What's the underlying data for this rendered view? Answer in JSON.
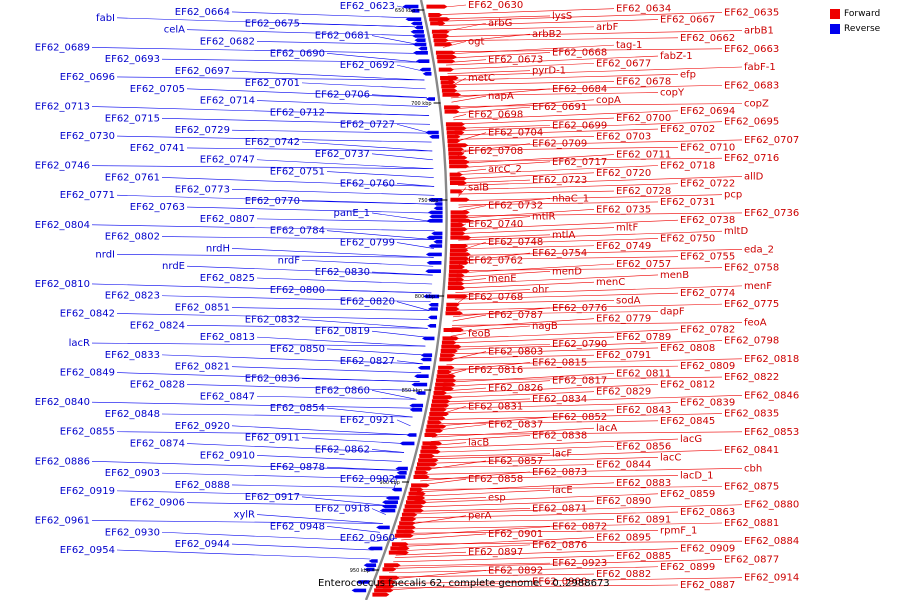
{
  "caption": "Enterococcus faecalis 62, complete genome. - 0..2988673",
  "legend": [
    {
      "label": "Forward",
      "color": "#ee0000"
    },
    {
      "label": "Reverse",
      "color": "#0000ee"
    }
  ],
  "colors": {
    "forward": "#ee0000",
    "reverse": "#0000ee",
    "backbone": "#888888"
  },
  "ticks": [
    "650 kbp",
    "700 kbp",
    "750 kbp",
    "800 kbp",
    "850 kbp",
    "900 kbp",
    "950 kbp"
  ],
  "reverse_labels": [
    "EF62_0623",
    "EF62_0664",
    "fabI",
    "EF62_0675",
    "celA",
    "EF62_0681",
    "EF62_0682",
    "EF62_0689",
    "EF62_0690",
    "EF62_0693",
    "EF62_0692",
    "EF62_0697",
    "EF62_0696",
    "EF62_0701",
    "EF62_0705",
    "EF62_0706",
    "EF62_0714",
    "EF62_0713",
    "EF62_0712",
    "EF62_0715",
    "EF62_0727",
    "EF62_0729",
    "EF62_0730",
    "EF62_0742",
    "EF62_0741",
    "EF62_0737",
    "EF62_0747",
    "EF62_0746",
    "EF62_0751",
    "EF62_0761",
    "EF62_0760",
    "EF62_0773",
    "EF62_0771",
    "EF62_0770",
    "EF62_0763",
    "panE_1",
    "EF62_0807",
    "EF62_0804",
    "EF62_0784",
    "EF62_0802",
    "EF62_0799",
    "nrdH",
    "nrdI",
    "nrdF",
    "nrdE",
    "EF62_0830",
    "EF62_0825",
    "EF62_0810",
    "EF62_0800",
    "EF62_0823",
    "EF62_0820",
    "EF62_0851",
    "EF62_0842",
    "EF62_0832",
    "EF62_0824",
    "EF62_0819",
    "EF62_0813",
    "lacR",
    "EF62_0850",
    "EF62_0833",
    "EF62_0827",
    "EF62_0821",
    "EF62_0849",
    "EF62_0836",
    "EF62_0828",
    "EF62_0860",
    "EF62_0847",
    "EF62_0840",
    "EF62_0854",
    "EF62_0848",
    "EF62_0921",
    "EF62_0920",
    "EF62_0855",
    "EF62_0911",
    "EF62_0874",
    "EF62_0862",
    "EF62_0910",
    "EF62_0886",
    "EF62_0878",
    "EF62_0903",
    "EF62_0902",
    "EF62_0888",
    "EF62_0919",
    "EF62_0917",
    "EF62_0906",
    "EF62_0918",
    "xylR",
    "EF62_0961",
    "EF62_0948",
    "EF62_0930",
    "EF62_0960",
    "EF62_0944",
    "EF62_0954"
  ],
  "forward_labels": [
    "EF62_0630",
    "EF62_0634",
    "EF62_0635",
    "lysS",
    "EF62_0667",
    "arbG",
    "arbF",
    "arbB1",
    "arbB2",
    "EF62_0662",
    "ogt",
    "tag-1",
    "EF62_0663",
    "EF62_0668",
    "fabZ-1",
    "EF62_0673",
    "EF62_0677",
    "fabF-1",
    "pyrD-1",
    "efp",
    "metC",
    "EF62_0678",
    "EF62_0683",
    "EF62_0684",
    "copY",
    "napA",
    "copA",
    "copZ",
    "EF62_0691",
    "EF62_0694",
    "EF62_0698",
    "EF62_0700",
    "EF62_0695",
    "EF62_0699",
    "EF62_0702",
    "EF62_0704",
    "EF62_0703",
    "EF62_0707",
    "EF62_0709",
    "EF62_0710",
    "EF62_0708",
    "EF62_0711",
    "EF62_0716",
    "EF62_0717",
    "EF62_0718",
    "arcC_2",
    "EF62_0720",
    "allD",
    "EF62_0723",
    "EF62_0722",
    "salB",
    "EF62_0728",
    "pcp",
    "nhaC_1",
    "EF62_0731",
    "EF62_0732",
    "EF62_0735",
    "EF62_0736",
    "mtlR",
    "EF62_0738",
    "EF62_0740",
    "mltF",
    "mltD",
    "mtlA",
    "EF62_0750",
    "EF62_0748",
    "EF62_0749",
    "eda_2",
    "EF62_0754",
    "EF62_0755",
    "EF62_0762",
    "EF62_0757",
    "EF62_0758",
    "menD",
    "menB",
    "menE",
    "menC",
    "menF",
    "ohr",
    "EF62_0774",
    "EF62_0768",
    "sodA",
    "EF62_0775",
    "EF62_0776",
    "dapF",
    "EF62_0787",
    "EF62_0779",
    "feoA",
    "nagB",
    "EF62_0782",
    "feoB",
    "EF62_0789",
    "EF62_0798",
    "EF62_0790",
    "EF62_0808",
    "EF62_0803",
    "EF62_0791",
    "EF62_0818",
    "EF62_0815",
    "EF62_0809",
    "EF62_0816",
    "EF62_0811",
    "EF62_0822",
    "EF62_0817",
    "EF62_0812",
    "EF62_0826",
    "EF62_0829",
    "EF62_0846",
    "EF62_0834",
    "EF62_0839",
    "EF62_0831",
    "EF62_0843",
    "EF62_0835",
    "EF62_0852",
    "EF62_0845",
    "EF62_0837",
    "lacA",
    "EF62_0853",
    "EF62_0838",
    "lacG",
    "lacB",
    "EF62_0856",
    "EF62_0841",
    "lacF",
    "lacC",
    "EF62_0857",
    "EF62_0844",
    "cbh",
    "EF62_0873",
    "lacD_1",
    "EF62_0858",
    "EF62_0883",
    "EF62_0875",
    "lacE",
    "EF62_0859",
    "esp",
    "EF62_0890",
    "EF62_0880",
    "EF62_0871",
    "EF62_0863",
    "perA",
    "EF62_0891",
    "EF62_0881",
    "EF62_0872",
    "rpmF_1",
    "EF62_0901",
    "EF62_0895",
    "EF62_0884",
    "EF62_0876",
    "EF62_0909",
    "EF62_0897",
    "EF62_0885",
    "EF62_0877",
    "EF62_0923",
    "EF62_0899",
    "EF62_0892",
    "EF62_0882",
    "EF62_0914",
    "EF62_0900",
    "EF62_0887"
  ]
}
